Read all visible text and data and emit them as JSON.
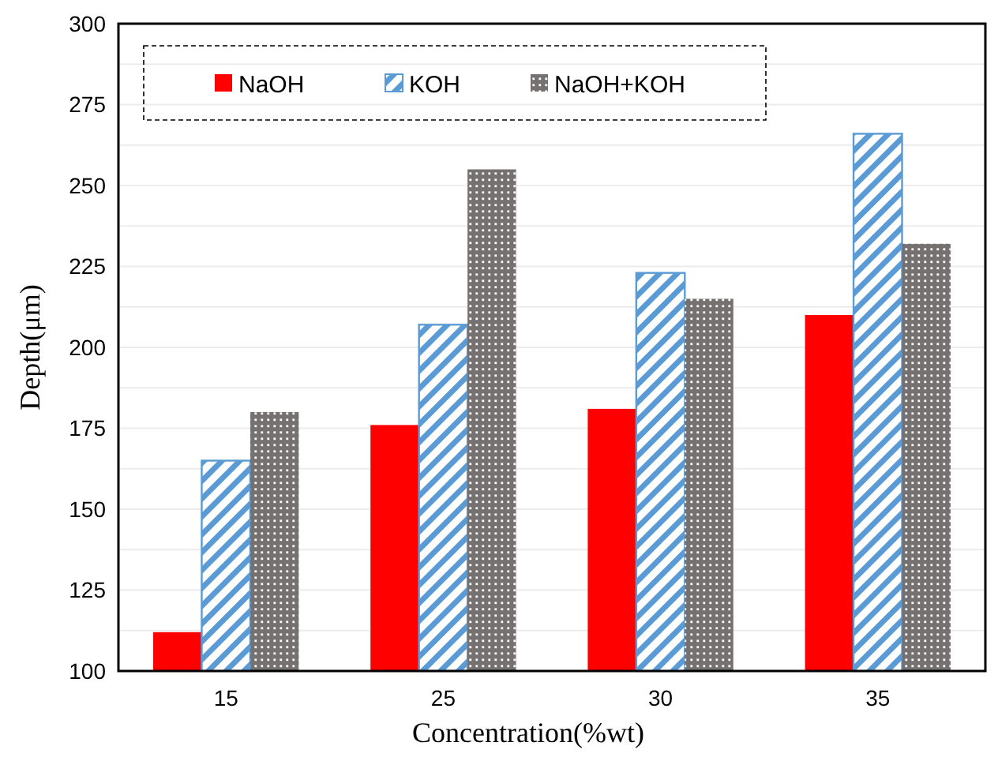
{
  "chart_data": {
    "type": "bar",
    "xlabel": "Concentration(%wt)",
    "ylabel": "Depth(μm)",
    "categories": [
      "15",
      "25",
      "30",
      "35"
    ],
    "series": [
      {
        "name": "NaOH",
        "color": "#ff0000",
        "values": [
          112,
          176,
          181,
          210
        ]
      },
      {
        "name": "KOH",
        "color": "#5b9bd5",
        "values": [
          165,
          207,
          223,
          266
        ]
      },
      {
        "name": "NaOH+KOH",
        "color": "#767171",
        "values": [
          180,
          255,
          215,
          232
        ]
      }
    ],
    "ylim": [
      100,
      300
    ],
    "yticks": [
      100,
      {
        "value": 112.5,
        "label": null
      },
      125,
      {
        "value": 137.5,
        "label": null
      },
      150,
      {
        "value": 162.5,
        "label": null
      },
      175,
      {
        "value": 187.5,
        "label": null
      },
      200,
      {
        "value": 212.5,
        "label": null
      },
      225,
      {
        "value": 237.5,
        "label": null
      },
      250,
      {
        "value": 262.5,
        "label": null
      },
      275,
      {
        "value": 287.5,
        "label": null
      },
      300
    ],
    "grid": "y",
    "legend": "top left"
  }
}
